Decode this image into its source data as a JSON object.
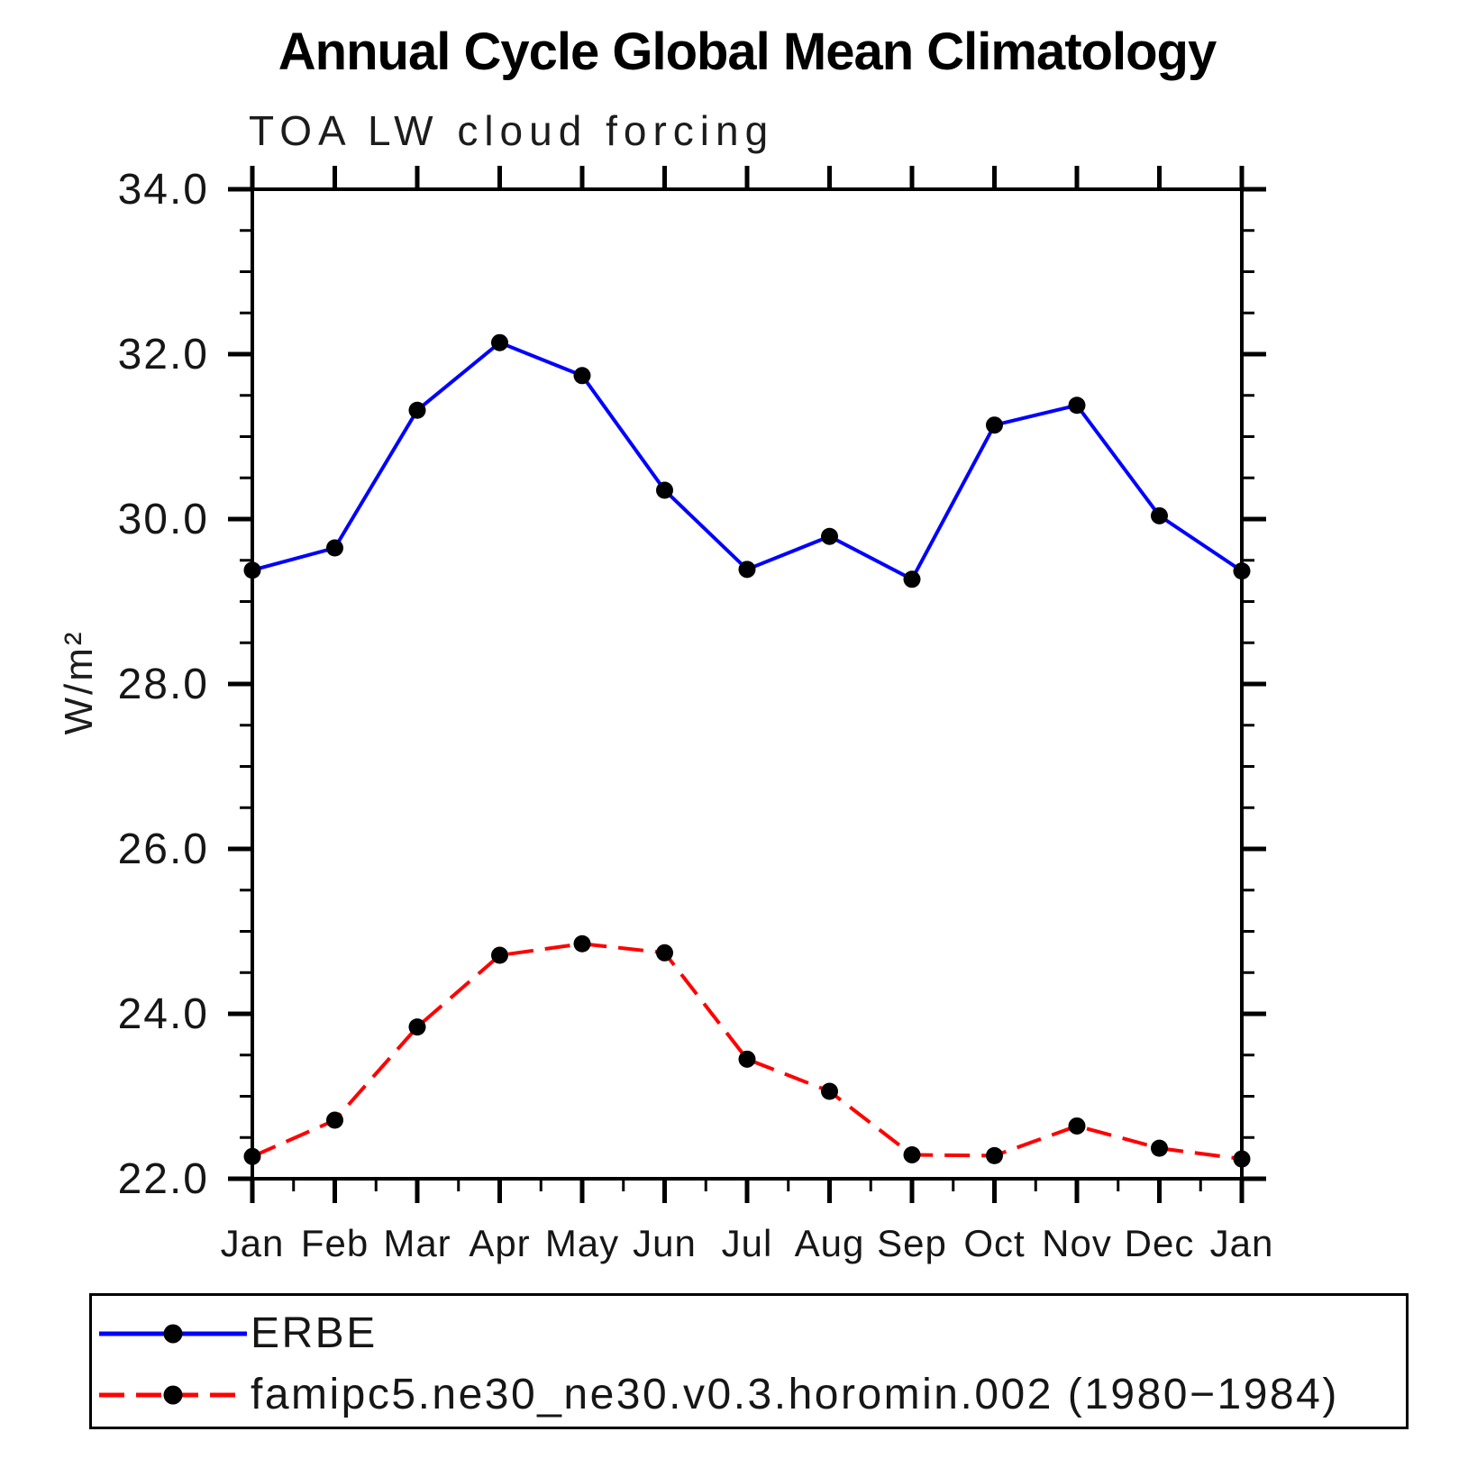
{
  "chart": {
    "title": "Annual Cycle Global Mean Climatology",
    "subtitle": "TOA LW cloud forcing",
    "ylabel": "W/m²",
    "legend": [
      {
        "label": "ERBE",
        "color": "#0000ff",
        "style": "solid"
      },
      {
        "label": "famipc5.ne30_ne30.v0.3.horomin.002 (1980−1984)",
        "color": "#ff0000",
        "style": "dashed"
      }
    ]
  },
  "chart_data": {
    "type": "line",
    "title": "Annual Cycle Global Mean Climatology",
    "subtitle": "TOA LW cloud forcing",
    "xlabel": "",
    "ylabel": "W/m²",
    "categories": [
      "Jan",
      "Feb",
      "Mar",
      "Apr",
      "May",
      "Jun",
      "Jul",
      "Aug",
      "Sep",
      "Oct",
      "Nov",
      "Dec",
      "Jan"
    ],
    "series": [
      {
        "name": "ERBE",
        "color": "#0000ff",
        "style": "solid",
        "values": [
          29.38,
          29.65,
          31.32,
          32.14,
          31.74,
          30.35,
          29.39,
          29.79,
          29.27,
          31.14,
          31.38,
          30.04,
          29.37
        ]
      },
      {
        "name": "famipc5.ne30_ne30.v0.3.horomin.002 (1980−1984)",
        "color": "#ff0000",
        "style": "dashed",
        "values": [
          22.27,
          22.71,
          23.84,
          24.71,
          24.85,
          24.74,
          23.45,
          23.06,
          22.29,
          22.28,
          22.64,
          22.37,
          22.24
        ]
      }
    ],
    "ylim": [
      22.0,
      34.0
    ],
    "y_major_step": 2.0,
    "y_minor_step": 0.5,
    "y_tick_labels": [
      "22.0",
      "24.0",
      "26.0",
      "28.0",
      "30.0",
      "32.0",
      "34.0"
    ],
    "marker": "filled-circle",
    "marker_color": "#000000",
    "grid": false,
    "legend_position": "bottom"
  }
}
